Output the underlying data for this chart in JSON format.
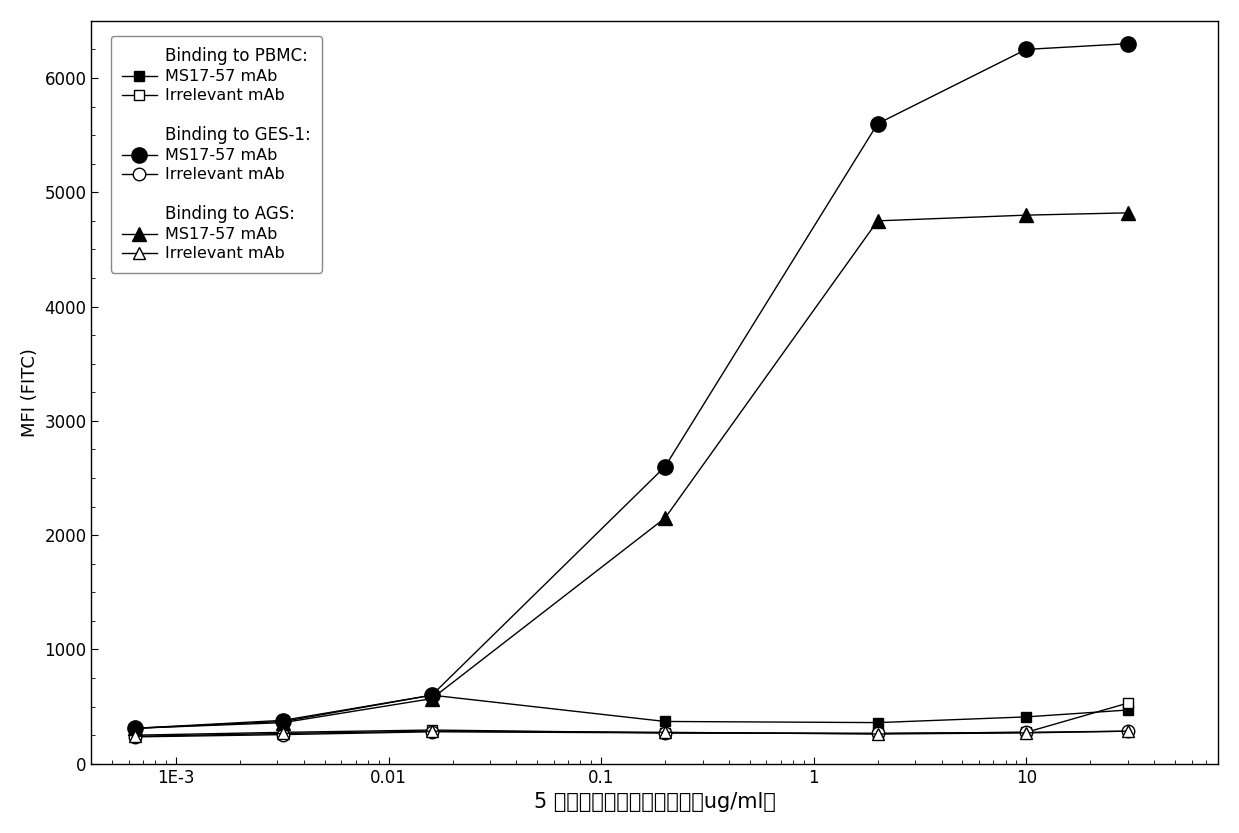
{
  "title": "",
  "xlabel": "5 倍系列稀释的单克隆抗体（ug/ml）",
  "ylabel": "MFI (FITC)",
  "x_values": [
    0.00064,
    0.0032,
    0.016,
    0.2,
    2.0,
    10.0,
    30.0
  ],
  "pbmc_ms17": [
    310,
    380,
    600,
    370,
    360,
    410,
    470
  ],
  "pbmc_irr": [
    250,
    275,
    295,
    270,
    265,
    275,
    530
  ],
  "ges1_ms17": [
    310,
    370,
    600,
    2600,
    5600,
    6250,
    6300
  ],
  "ges1_irr": [
    235,
    255,
    280,
    270,
    265,
    275,
    285
  ],
  "ags_ms17": [
    310,
    360,
    570,
    2150,
    4750,
    4800,
    4820
  ],
  "ags_irr": [
    240,
    265,
    285,
    275,
    260,
    270,
    285
  ],
  "ylim": [
    0,
    6500
  ],
  "yticks": [
    0,
    1000,
    2000,
    3000,
    4000,
    5000,
    6000
  ],
  "xlim_left": 0.0004,
  "xlim_right": 80,
  "color_black": "#000000",
  "background": "#ffffff",
  "legend_title_pbmc": "Binding to PBMC:",
  "legend_title_ges1": "Binding to GES-1:",
  "legend_title_ags": "Binding to AGS:",
  "legend_ms17": "MS17-57 mAb",
  "legend_irr": "Irrelevant mAb",
  "x_ticks": [
    0.001,
    0.01,
    0.1,
    1,
    10
  ],
  "x_labels": [
    "1E-3",
    "0.01",
    "0.1",
    "1",
    "10"
  ]
}
